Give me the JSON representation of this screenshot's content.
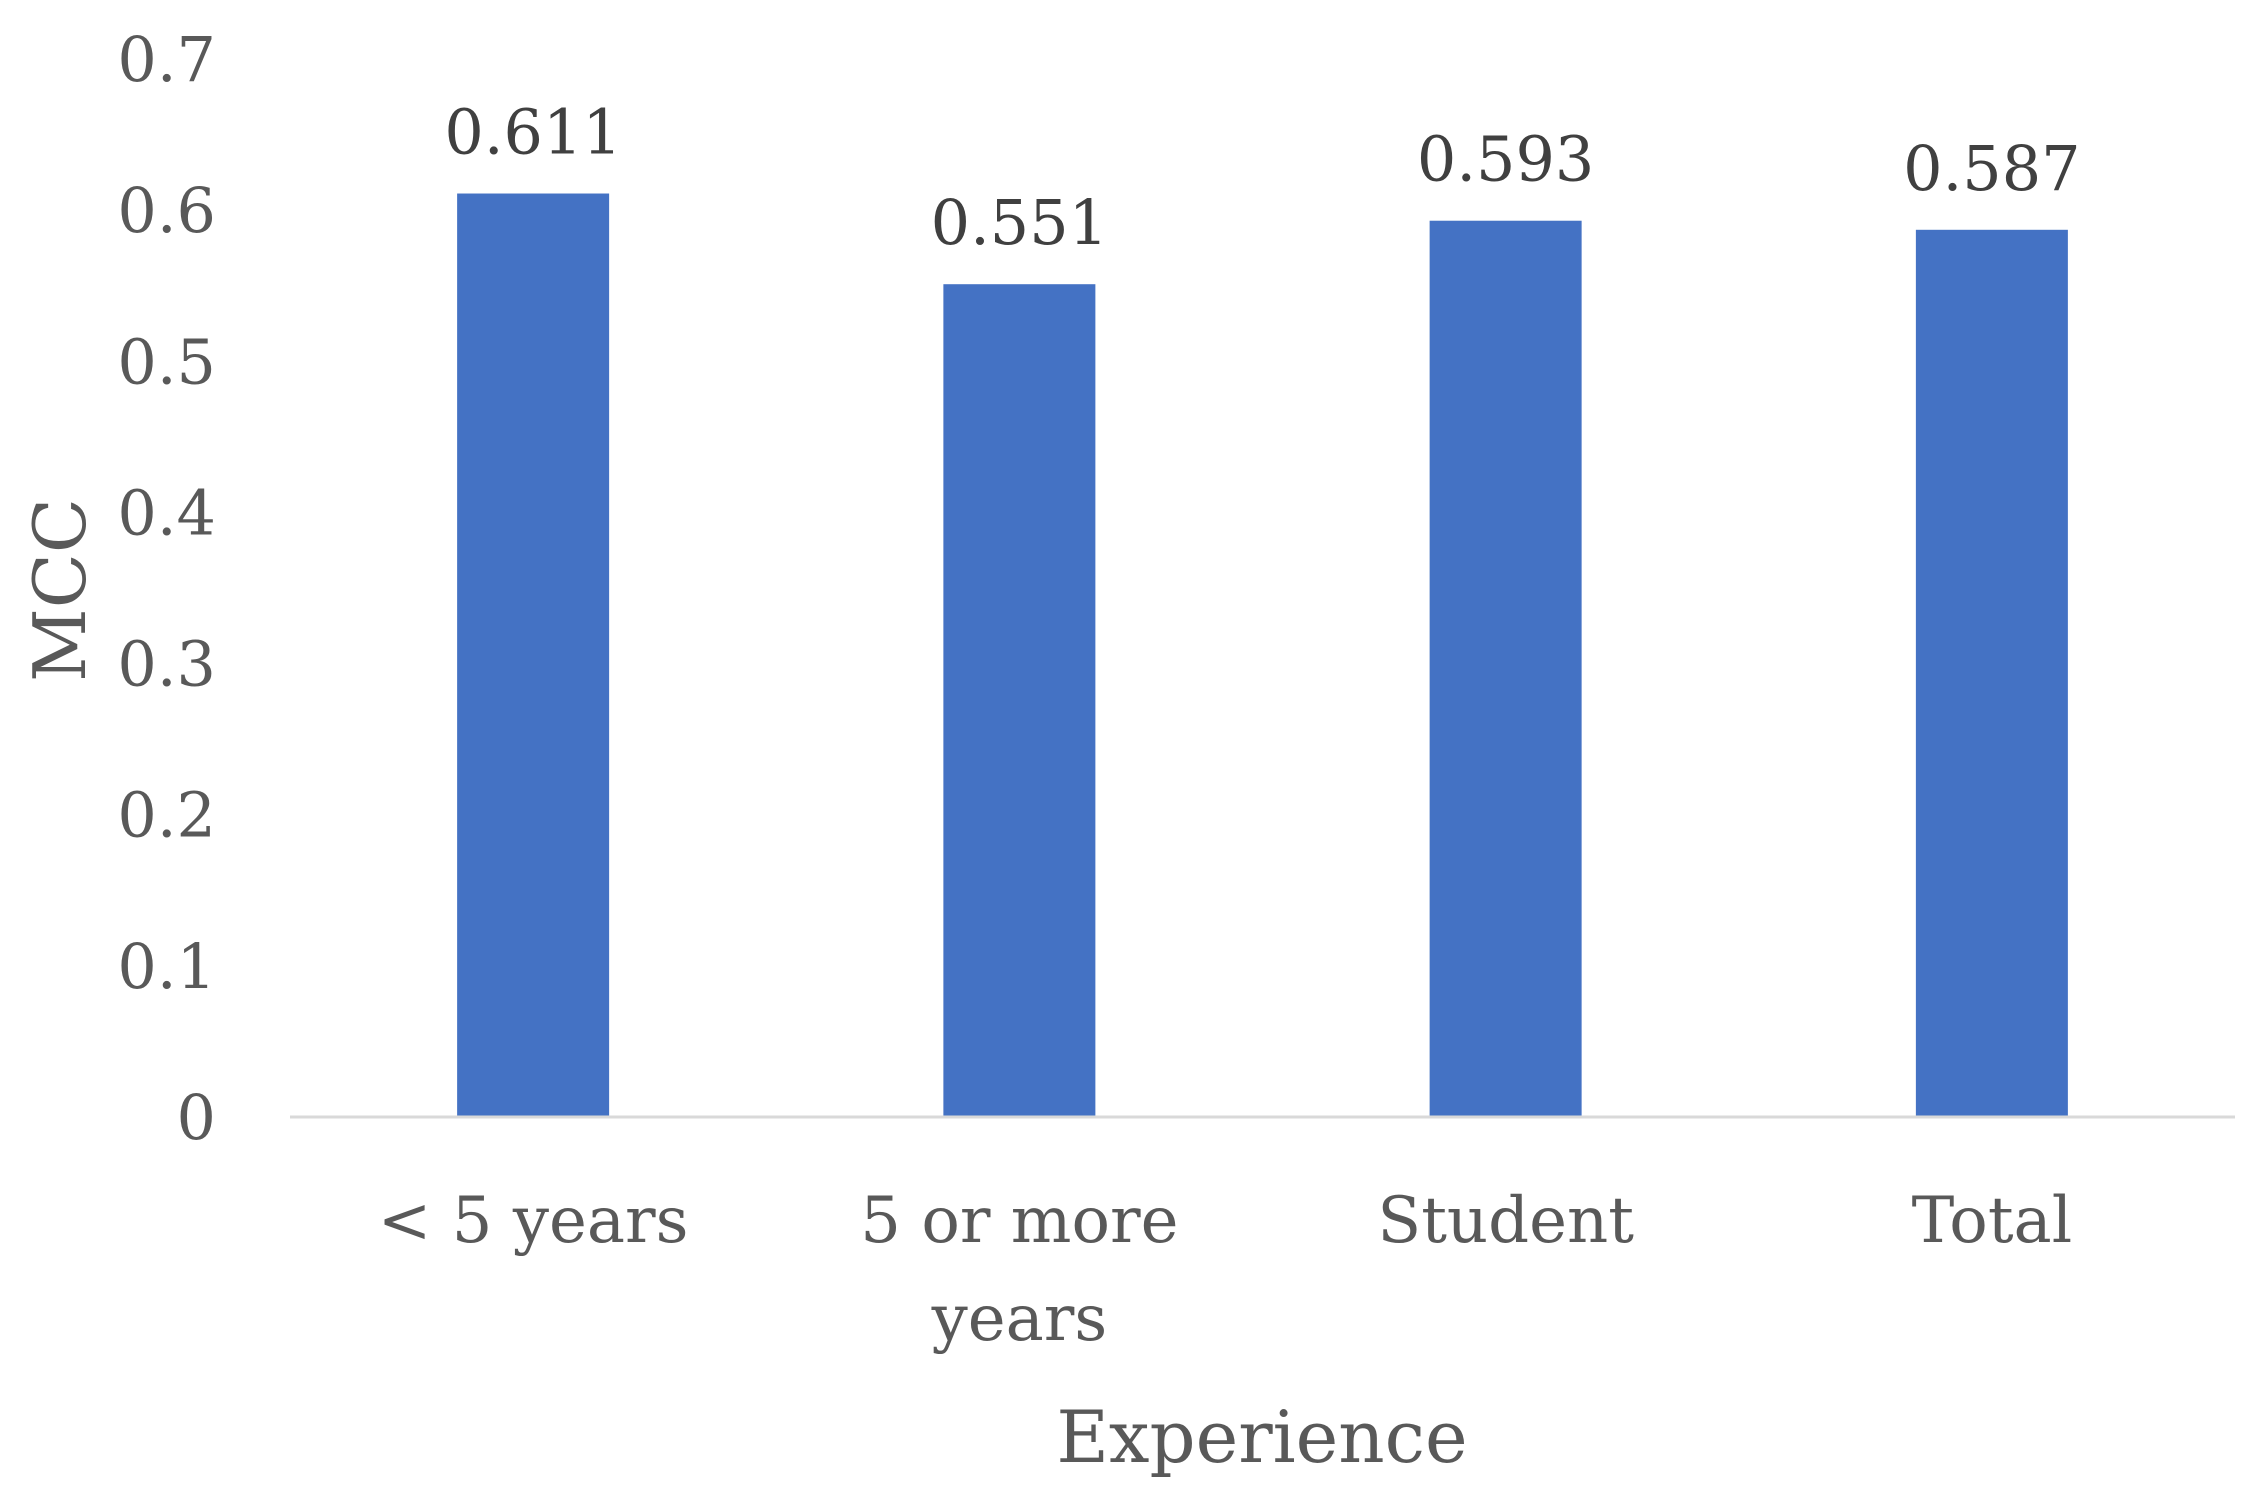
{
  "chart_data": {
    "type": "bar",
    "categories": [
      [
        "< 5 years"
      ],
      [
        "5 or more",
        "years"
      ],
      [
        "Student"
      ],
      [
        "Total"
      ]
    ],
    "values": [
      0.611,
      0.551,
      0.593,
      0.587
    ],
    "data_labels": [
      "0.611",
      "0.551",
      "0.593",
      "0.587"
    ],
    "title": "",
    "xlabel": "Experience",
    "ylabel": "MCC",
    "ylim": [
      0,
      0.7
    ],
    "yticks": [
      "0",
      "0.1",
      "0.2",
      "0.3",
      "0.4",
      "0.5",
      "0.6",
      "0.7"
    ],
    "grid": false,
    "legend": "none",
    "bar_color": "#4472C4",
    "axis_color": "#D9D9D9"
  }
}
